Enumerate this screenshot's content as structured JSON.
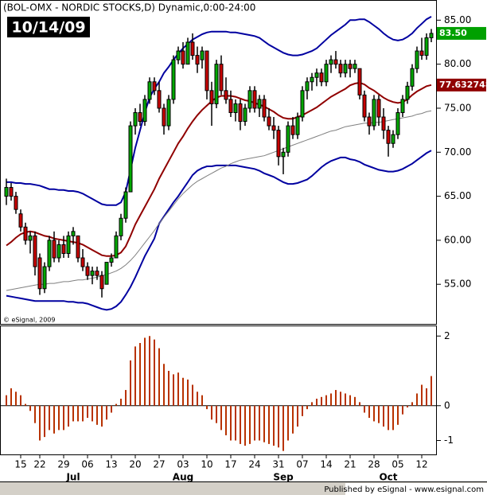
{
  "chart_data": {
    "type": "candlestick",
    "title": "(BOL-OMX - NORDIC STOCKS,D) Dynamic,0:00-24:00",
    "date_label": "10/14/09",
    "watermark": "© eSignal, 2009",
    "credit": "Published by eSignal - www.esignal.com",
    "categories": [
      null,
      null,
      null,
      "15",
      null,
      null,
      null,
      "22",
      null,
      null,
      null,
      null,
      "29",
      null,
      null,
      null,
      null,
      "06",
      null,
      null,
      null,
      null,
      "13",
      null,
      null,
      null,
      null,
      "20",
      null,
      null,
      null,
      null,
      "27",
      null,
      null,
      null,
      null,
      "03",
      null,
      null,
      null,
      null,
      "10",
      null,
      null,
      null,
      null,
      "17",
      null,
      null,
      null,
      null,
      "24",
      null,
      null,
      null,
      null,
      "31",
      null,
      null,
      null,
      null,
      "07",
      null,
      null,
      null,
      null,
      "14",
      null,
      null,
      null,
      null,
      "21",
      null,
      null,
      null,
      null,
      "28",
      null,
      null,
      null,
      null,
      "05",
      null,
      null,
      null,
      null,
      "12",
      null,
      null
    ],
    "month_labels": [
      null,
      null,
      null,
      null,
      null,
      null,
      null,
      null,
      null,
      null,
      null,
      null,
      null,
      null,
      "Jul",
      null,
      null,
      null,
      null,
      null,
      null,
      null,
      null,
      null,
      null,
      null,
      null,
      null,
      null,
      null,
      null,
      null,
      null,
      null,
      null,
      null,
      null,
      "Aug",
      null,
      null,
      null,
      null,
      null,
      null,
      null,
      null,
      null,
      null,
      null,
      null,
      null,
      null,
      null,
      null,
      null,
      null,
      null,
      null,
      "Sep",
      null,
      null,
      null,
      null,
      null,
      null,
      null,
      null,
      null,
      null,
      null,
      null,
      null,
      null,
      null,
      null,
      null,
      null,
      null,
      null,
      null,
      "Oct",
      null,
      null,
      null,
      null,
      null,
      null,
      null,
      null,
      null
    ],
    "open": [
      65,
      66,
      65,
      63,
      61.5,
      60,
      60.5,
      58,
      54.5,
      57,
      60,
      58,
      59.5,
      58.5,
      60.5,
      60.5,
      58,
      57,
      56,
      56.5,
      56,
      55,
      57.5,
      58,
      60.5,
      62.5,
      65.5,
      73,
      74.5,
      73.5,
      76,
      78,
      77,
      75,
      73,
      76,
      80.5,
      81.5,
      80,
      82.5,
      81,
      80.5,
      81.5,
      77,
      75.5,
      80,
      77,
      76,
      74.5,
      75.5,
      73.5,
      75,
      77,
      75,
      76,
      74,
      73,
      72.5,
      69.5,
      70,
      73,
      72,
      74,
      77,
      78,
      78.5,
      79,
      78,
      80,
      80.5,
      80,
      79,
      80,
      79.5,
      79.5,
      76.5,
      74,
      73,
      76,
      74,
      72.5,
      71,
      72,
      74.5,
      76,
      77.5,
      79.5,
      81.5,
      81,
      83
    ],
    "high": [
      67,
      66.5,
      65.5,
      63.5,
      62,
      61,
      61,
      58.5,
      57.5,
      60.5,
      61,
      60,
      60.5,
      61,
      61.5,
      60.5,
      59,
      57.5,
      57,
      57,
      56.5,
      57.5,
      58.5,
      61,
      63,
      66,
      73.5,
      75,
      75.5,
      76.5,
      78.5,
      78.5,
      78,
      75.5,
      76.5,
      81,
      82,
      82.5,
      83,
      83.5,
      82,
      82,
      81.5,
      78,
      80.5,
      81,
      78.5,
      77,
      76,
      76,
      75.5,
      77.5,
      77.5,
      76.5,
      76.5,
      75,
      74,
      73,
      70.5,
      73.5,
      74,
      74.5,
      77.5,
      78.5,
      79,
      79.5,
      79.5,
      80.5,
      81,
      81.5,
      80.5,
      80.5,
      80.5,
      80.5,
      79.5,
      77,
      74.5,
      76.5,
      76.5,
      75,
      73,
      72.5,
      75,
      76.5,
      78,
      80,
      82,
      83,
      83.5,
      84
    ],
    "low": [
      64,
      64.5,
      63,
      61,
      59.5,
      58.5,
      56,
      53.8,
      54,
      56.5,
      57.5,
      57.5,
      58,
      58,
      59.5,
      57.5,
      56.5,
      55.5,
      55,
      55.5,
      53.5,
      55,
      57,
      58,
      60,
      62,
      65.5,
      72,
      73,
      73,
      75.5,
      76.5,
      74.5,
      72,
      72.5,
      75.5,
      80,
      79.5,
      80,
      80.5,
      79,
      79.5,
      76,
      73,
      75,
      76.5,
      75.5,
      74,
      73.5,
      72.5,
      73,
      74.5,
      74.5,
      74,
      73.5,
      72.5,
      71.5,
      68.5,
      67.5,
      69.5,
      71.5,
      71.5,
      73.5,
      76,
      77,
      77.5,
      77.5,
      77.5,
      79,
      79.5,
      78.5,
      78.5,
      78.5,
      79,
      76,
      73.5,
      72,
      72.5,
      73,
      71.5,
      69.5,
      70.5,
      71.5,
      74,
      75.5,
      77,
      79,
      80.5,
      80.5,
      82.5
    ],
    "close": [
      66,
      65,
      63.5,
      61.5,
      60,
      60.5,
      57,
      54.5,
      57,
      60,
      58,
      59.5,
      58.5,
      60.5,
      61,
      58,
      57,
      56,
      56.5,
      56,
      54.5,
      57.5,
      58,
      60.5,
      62.5,
      65.5,
      73,
      74.5,
      73.5,
      76,
      78,
      77,
      75,
      73,
      76,
      80.5,
      81.5,
      80,
      82.5,
      81,
      80,
      81.5,
      77,
      75.5,
      80,
      77,
      76,
      74.5,
      75.5,
      73.5,
      75,
      77,
      75,
      76,
      74,
      73,
      72.5,
      69.5,
      70,
      73,
      72,
      74,
      77,
      78,
      78.5,
      79,
      78,
      80,
      80.5,
      80,
      79,
      80,
      79.5,
      80,
      76.5,
      74,
      73,
      76,
      74,
      72.5,
      71,
      72,
      74.5,
      76,
      77.5,
      79.5,
      81.5,
      81,
      83,
      83.5
    ],
    "close_label": "83.50",
    "up_color": "#00a800",
    "down_color": "#c80000",
    "label_color": "#00a000",
    "overlays": [
      {
        "color": "#0000a0",
        "width": 2,
        "values": [
          66.6,
          66.6,
          66.5,
          66.5,
          66.4,
          66.4,
          66.3,
          66.2,
          66.0,
          65.8,
          65.8,
          65.7,
          65.7,
          65.6,
          65.6,
          65.5,
          65.3,
          65.0,
          64.7,
          64.4,
          64.1,
          64.0,
          64.0,
          64.0,
          64.3,
          65.5,
          68,
          70.5,
          72.5,
          74.5,
          76.2,
          77.2,
          78,
          79,
          79.7,
          80.5,
          81.2,
          81.8,
          82.3,
          82.8,
          83.1,
          83.4,
          83.6,
          83.7,
          83.7,
          83.7,
          83.7,
          83.6,
          83.6,
          83.5,
          83.4,
          83.3,
          83.2,
          83.0,
          82.6,
          82.2,
          81.9,
          81.6,
          81.3,
          81.1,
          81.0,
          81.0,
          81.1,
          81.3,
          81.5,
          81.8,
          82.3,
          82.8,
          83.3,
          83.7,
          84.1,
          84.5,
          85.0,
          85.0,
          85.1,
          85.1,
          84.8,
          84.4,
          84.0,
          83.5,
          83.1,
          82.8,
          82.7,
          82.8,
          83.1,
          83.5,
          84.1,
          84.6,
          85.1,
          85.4
        ]
      },
      {
        "color": "#0000a0",
        "width": 2,
        "values": [
          53.7,
          53.6,
          53.5,
          53.4,
          53.3,
          53.2,
          53.1,
          53.1,
          53.1,
          53.1,
          53.1,
          53.1,
          53.1,
          53.0,
          53.0,
          52.9,
          52.9,
          52.8,
          52.6,
          52.4,
          52.2,
          52.1,
          52.2,
          52.5,
          53.0,
          53.8,
          54.7,
          55.8,
          57.0,
          58.2,
          59.2,
          60.2,
          61.9,
          62.7,
          63.5,
          64.3,
          65.0,
          65.8,
          66.6,
          67.4,
          67.9,
          68.2,
          68.4,
          68.4,
          68.5,
          68.5,
          68.5,
          68.5,
          68.5,
          68.4,
          68.3,
          68.2,
          68.1,
          67.9,
          67.6,
          67.4,
          67.2,
          66.9,
          66.6,
          66.4,
          66.4,
          66.5,
          66.7,
          66.9,
          67.3,
          67.8,
          68.3,
          68.7,
          69.0,
          69.2,
          69.4,
          69.4,
          69.2,
          69.1,
          68.9,
          68.6,
          68.4,
          68.2,
          68.0,
          67.9,
          67.8,
          67.8,
          67.9,
          68.1,
          68.4,
          68.7,
          69.1,
          69.5,
          69.9,
          70.2
        ]
      },
      {
        "color": "#808080",
        "width": 1,
        "values": [
          54.3,
          54.4,
          54.5,
          54.6,
          54.7,
          54.8,
          54.9,
          55.0,
          55.0,
          55.1,
          55.1,
          55.2,
          55.3,
          55.3,
          55.4,
          55.5,
          55.5,
          55.6,
          55.7,
          55.8,
          56.0,
          56.1,
          56.3,
          56.5,
          56.8,
          57.2,
          57.7,
          58.3,
          59.0,
          59.7,
          60.4,
          61.1,
          61.9,
          62.6,
          63.3,
          64.0,
          64.7,
          65.3,
          65.8,
          66.3,
          66.7,
          67.0,
          67.3,
          67.6,
          67.9,
          68.2,
          68.4,
          68.7,
          68.9,
          69.1,
          69.2,
          69.3,
          69.4,
          69.5,
          69.6,
          69.8,
          70.0,
          70.2,
          70.4,
          70.6,
          70.8,
          71.0,
          71.2,
          71.4,
          71.6,
          71.8,
          72.0,
          72.2,
          72.4,
          72.5,
          72.7,
          72.9,
          73.0,
          73.1,
          73.2,
          73.3,
          73.3,
          73.4,
          73.4,
          73.5,
          73.6,
          73.7,
          73.8,
          73.9,
          74.0,
          74.1,
          74.3,
          74.4,
          74.6,
          74.7
        ]
      },
      {
        "color": "#900000",
        "width": 2,
        "last_label": "77.632748",
        "values": [
          59.4,
          59.8,
          60.3,
          60.7,
          60.9,
          61.0,
          60.9,
          60.7,
          60.5,
          60.4,
          60.2,
          60.1,
          60.0,
          59.9,
          59.8,
          59.7,
          59.5,
          59.2,
          58.9,
          58.6,
          58.3,
          58.2,
          58.2,
          58.3,
          58.6,
          59.3,
          60.5,
          61.8,
          62.8,
          63.8,
          64.8,
          65.8,
          67.0,
          68.0,
          69.0,
          70.0,
          71.0,
          71.8,
          72.7,
          73.5,
          74.2,
          74.8,
          75.3,
          75.8,
          76.2,
          76.4,
          76.4,
          76.4,
          76.3,
          76.1,
          75.9,
          75.8,
          75.6,
          75.4,
          75.2,
          74.9,
          74.6,
          74.2,
          73.9,
          73.8,
          73.8,
          74.0,
          74.2,
          74.5,
          74.8,
          75.1,
          75.5,
          75.9,
          76.3,
          76.6,
          76.9,
          77.2,
          77.6,
          77.8,
          77.9,
          77.7,
          77.3,
          77.0,
          76.6,
          76.2,
          75.9,
          75.7,
          75.6,
          75.7,
          76.0,
          76.5,
          76.9,
          77.2,
          77.5,
          77.632748
        ]
      }
    ],
    "ylim": [
      50.5,
      87.2
    ],
    "yticks": [
      {
        "value": 55,
        "label": "55.00"
      },
      {
        "value": 60,
        "label": "60.00"
      },
      {
        "value": 65,
        "label": "65.00"
      },
      {
        "value": 70,
        "label": "70.00"
      },
      {
        "value": 75,
        "label": "75.00"
      },
      {
        "value": 80,
        "label": "80.00"
      },
      {
        "value": 85,
        "label": "85.00"
      }
    ],
    "indicator": {
      "type": "bar",
      "color": "#b83200",
      "values": [
        0.3,
        0.5,
        0.4,
        0.3,
        0.05,
        -0.15,
        -0.5,
        -1.0,
        -0.9,
        -0.7,
        -0.8,
        -0.7,
        -0.7,
        -0.6,
        -0.45,
        -0.45,
        -0.45,
        -0.35,
        -0.45,
        -0.55,
        -0.6,
        -0.4,
        -0.2,
        0.05,
        0.2,
        0.45,
        1.3,
        1.7,
        1.8,
        1.95,
        2.0,
        1.9,
        1.65,
        1.2,
        1.0,
        0.9,
        0.95,
        0.8,
        0.75,
        0.6,
        0.4,
        0.3,
        -0.1,
        -0.4,
        -0.5,
        -0.7,
        -0.85,
        -1.0,
        -1.0,
        -1.1,
        -1.15,
        -1.1,
        -1.0,
        -1.0,
        -1.05,
        -1.1,
        -1.15,
        -1.2,
        -1.3,
        -1.0,
        -0.8,
        -0.6,
        -0.3,
        -0.1,
        0.1,
        0.2,
        0.25,
        0.3,
        0.35,
        0.45,
        0.4,
        0.35,
        0.3,
        0.25,
        0.1,
        -0.2,
        -0.35,
        -0.45,
        -0.5,
        -0.6,
        -0.7,
        -0.7,
        -0.55,
        -0.25,
        -0.05,
        0.1,
        0.35,
        0.6,
        0.5,
        0.85
      ],
      "ylim": [
        -1.4,
        2.28
      ],
      "yticks": [
        -1,
        0,
        2
      ]
    }
  }
}
